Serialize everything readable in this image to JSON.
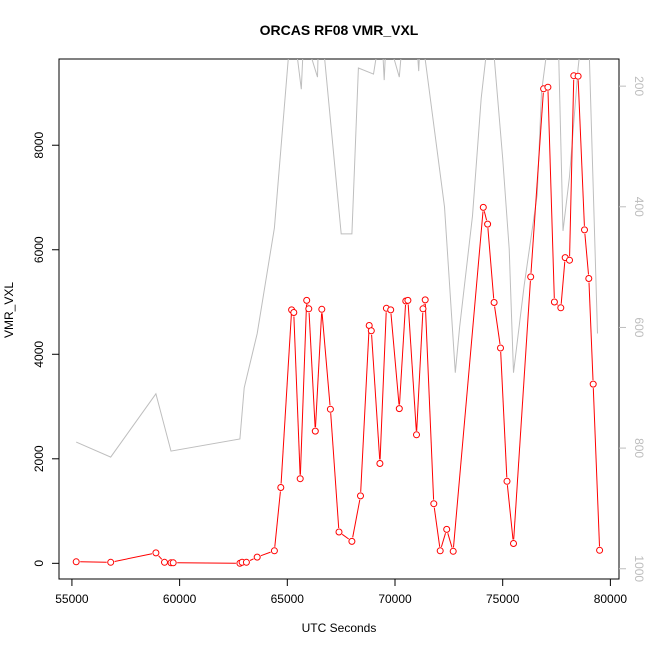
{
  "chart_data": {
    "type": "line",
    "title": "ORCAS RF08 VMR_VXL",
    "xlabel": "UTC Seconds",
    "ylabel": "VMR_VXL",
    "xlim": [
      54400,
      80400
    ],
    "ylim": [
      -300,
      9650
    ],
    "x_ticks": [
      55000,
      60000,
      65000,
      70000,
      75000,
      80000
    ],
    "y_ticks": [
      0,
      2000,
      4000,
      6000,
      8000
    ],
    "grid": false,
    "series": [
      {
        "color": "#ff0000",
        "style": "line-points",
        "x": [
          55200,
          56800,
          58900,
          59300,
          59600,
          59700,
          62800,
          62900,
          63100,
          63600,
          64400,
          64700,
          65200,
          65300,
          65600,
          65900,
          66000,
          66300,
          66600,
          67000,
          67400,
          68000,
          68400,
          68800,
          68900,
          69300,
          69600,
          69800,
          70200,
          70500,
          70600,
          71000,
          71300,
          71400,
          71800,
          72100,
          72400,
          72700,
          74100,
          74300,
          74600,
          74900,
          75200,
          75500,
          76300,
          76900,
          77100,
          77400,
          77700,
          77900,
          78100,
          78300,
          78500,
          78800,
          79000,
          79200,
          79500
        ],
        "y": [
          30,
          20,
          200,
          20,
          10,
          10,
          0,
          20,
          20,
          120,
          240,
          1450,
          4850,
          4800,
          1620,
          5030,
          4870,
          2530,
          4860,
          2950,
          600,
          420,
          1290,
          4550,
          4450,
          1910,
          4880,
          4850,
          2960,
          5020,
          5030,
          2460,
          4870,
          5040,
          1140,
          240,
          650,
          230,
          6810,
          6490,
          4990,
          4120,
          1570,
          380,
          5480,
          9080,
          9110,
          5000,
          4890,
          5850,
          5800,
          9330,
          9320,
          6380,
          5450,
          3430,
          250
        ]
      },
      {
        "color": "#bebebe",
        "style": "line",
        "axis": "right",
        "x": [
          55200,
          56800,
          58900,
          59600,
          62800,
          63000,
          63600,
          64400,
          65100,
          65200,
          65300,
          65650,
          65750,
          66100,
          66400,
          66450,
          66600,
          67500,
          67600,
          68000,
          68300,
          69000,
          69200,
          69400,
          69500,
          69600,
          70200,
          70400,
          70600,
          70900,
          71000,
          71100,
          71200,
          72300,
          72800,
          73000,
          73600,
          74000,
          74400,
          74600,
          75000,
          75300,
          75500,
          76000,
          76600,
          76800,
          77200,
          77600,
          77800,
          78100,
          78500,
          78700,
          79000,
          79400
        ],
        "y": [
          790,
          815,
          710,
          805,
          785,
          700,
          610,
          435,
          130,
          85,
          105,
          205,
          125,
          150,
          185,
          120,
          105,
          445,
          445,
          445,
          170,
          180,
          135,
          120,
          190,
          110,
          185,
          100,
          130,
          140,
          120,
          175,
          100,
          400,
          675,
          600,
          415,
          220,
          95,
          150,
          320,
          470,
          675,
          530,
          380,
          210,
          100,
          150,
          440,
          350,
          170,
          105,
          120,
          610
        ]
      }
    ],
    "right_axis": {
      "ticks": [
        200,
        400,
        600,
        800,
        1000
      ],
      "lim": [
        1017,
        155
      ],
      "color": "#bdbdbd"
    }
  }
}
